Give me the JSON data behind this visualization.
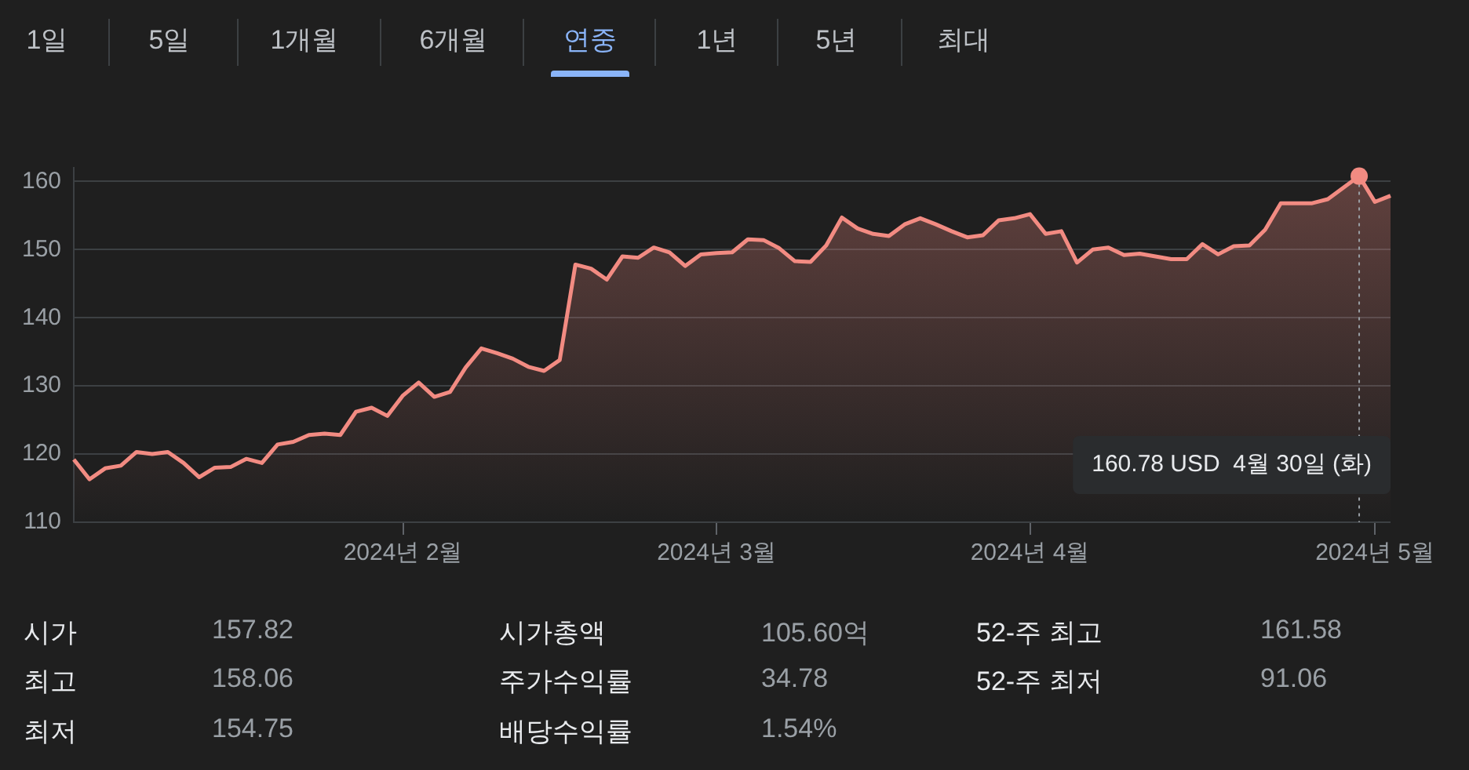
{
  "chart_data": {
    "type": "area",
    "categories": [
      null,
      null,
      null,
      null,
      null,
      null,
      null,
      null,
      null,
      null,
      null,
      null,
      null,
      null,
      null,
      null,
      null,
      null,
      null,
      null,
      null,
      "2024년 2월",
      null,
      null,
      null,
      null,
      null,
      null,
      null,
      null,
      null,
      null,
      null,
      null,
      null,
      null,
      null,
      null,
      null,
      null,
      null,
      "2024년 3월",
      null,
      null,
      null,
      null,
      null,
      null,
      null,
      null,
      null,
      null,
      null,
      null,
      null,
      null,
      null,
      null,
      null,
      null,
      null,
      "2024년 4월",
      null,
      null,
      null,
      null,
      null,
      null,
      null,
      null,
      null,
      null,
      null,
      null,
      null,
      null,
      null,
      null,
      null,
      null,
      null,
      null,
      null,
      "2024년 5월",
      null
    ],
    "series": [
      {
        "color": "#f28b82",
        "values": [
          119.2,
          116.3,
          117.9,
          118.3,
          120.3,
          120.0,
          120.3,
          118.7,
          116.6,
          118.0,
          118.1,
          119.3,
          118.7,
          121.4,
          121.8,
          122.8,
          123.0,
          122.8,
          126.2,
          126.8,
          125.6,
          128.6,
          130.5,
          128.4,
          129.1,
          132.7,
          135.5,
          134.8,
          134.0,
          132.8,
          132.2,
          133.8,
          147.8,
          147.2,
          145.6,
          149.0,
          148.8,
          150.3,
          149.6,
          147.6,
          149.3,
          149.5,
          149.6,
          151.5,
          151.4,
          150.2,
          148.3,
          148.2,
          150.6,
          154.7,
          153.1,
          152.3,
          152.0,
          153.7,
          154.6,
          153.7,
          152.7,
          151.8,
          152.1,
          154.3,
          154.6,
          155.2,
          152.3,
          152.7,
          148.1,
          150.0,
          150.3,
          149.2,
          149.4,
          149.0,
          148.6,
          148.6,
          150.8,
          149.3,
          150.5,
          150.6,
          152.9,
          156.8,
          156.8,
          156.8,
          157.4,
          159.1,
          160.78,
          157.0,
          157.9
        ]
      }
    ],
    "ylim": [
      110,
      162
    ],
    "yticks": [
      110,
      120,
      130,
      140,
      150,
      160
    ],
    "grid": "y",
    "legend": false,
    "marker": "none",
    "annotations": [
      "1일",
      "5일",
      "1개월",
      "6개월",
      "연중",
      "1년",
      "5년",
      "최대",
      "시가",
      "157.82",
      "시가총액",
      "105.60억",
      "52-주 최고",
      "161.58",
      "최고",
      "158.06",
      "주가수익률",
      "34.78",
      "52-주 최저",
      "91.06",
      "최저",
      "154.75",
      "배당수익률",
      "1.54%",
      "160.78 USD  4월 30일 (화)"
    ]
  }
}
